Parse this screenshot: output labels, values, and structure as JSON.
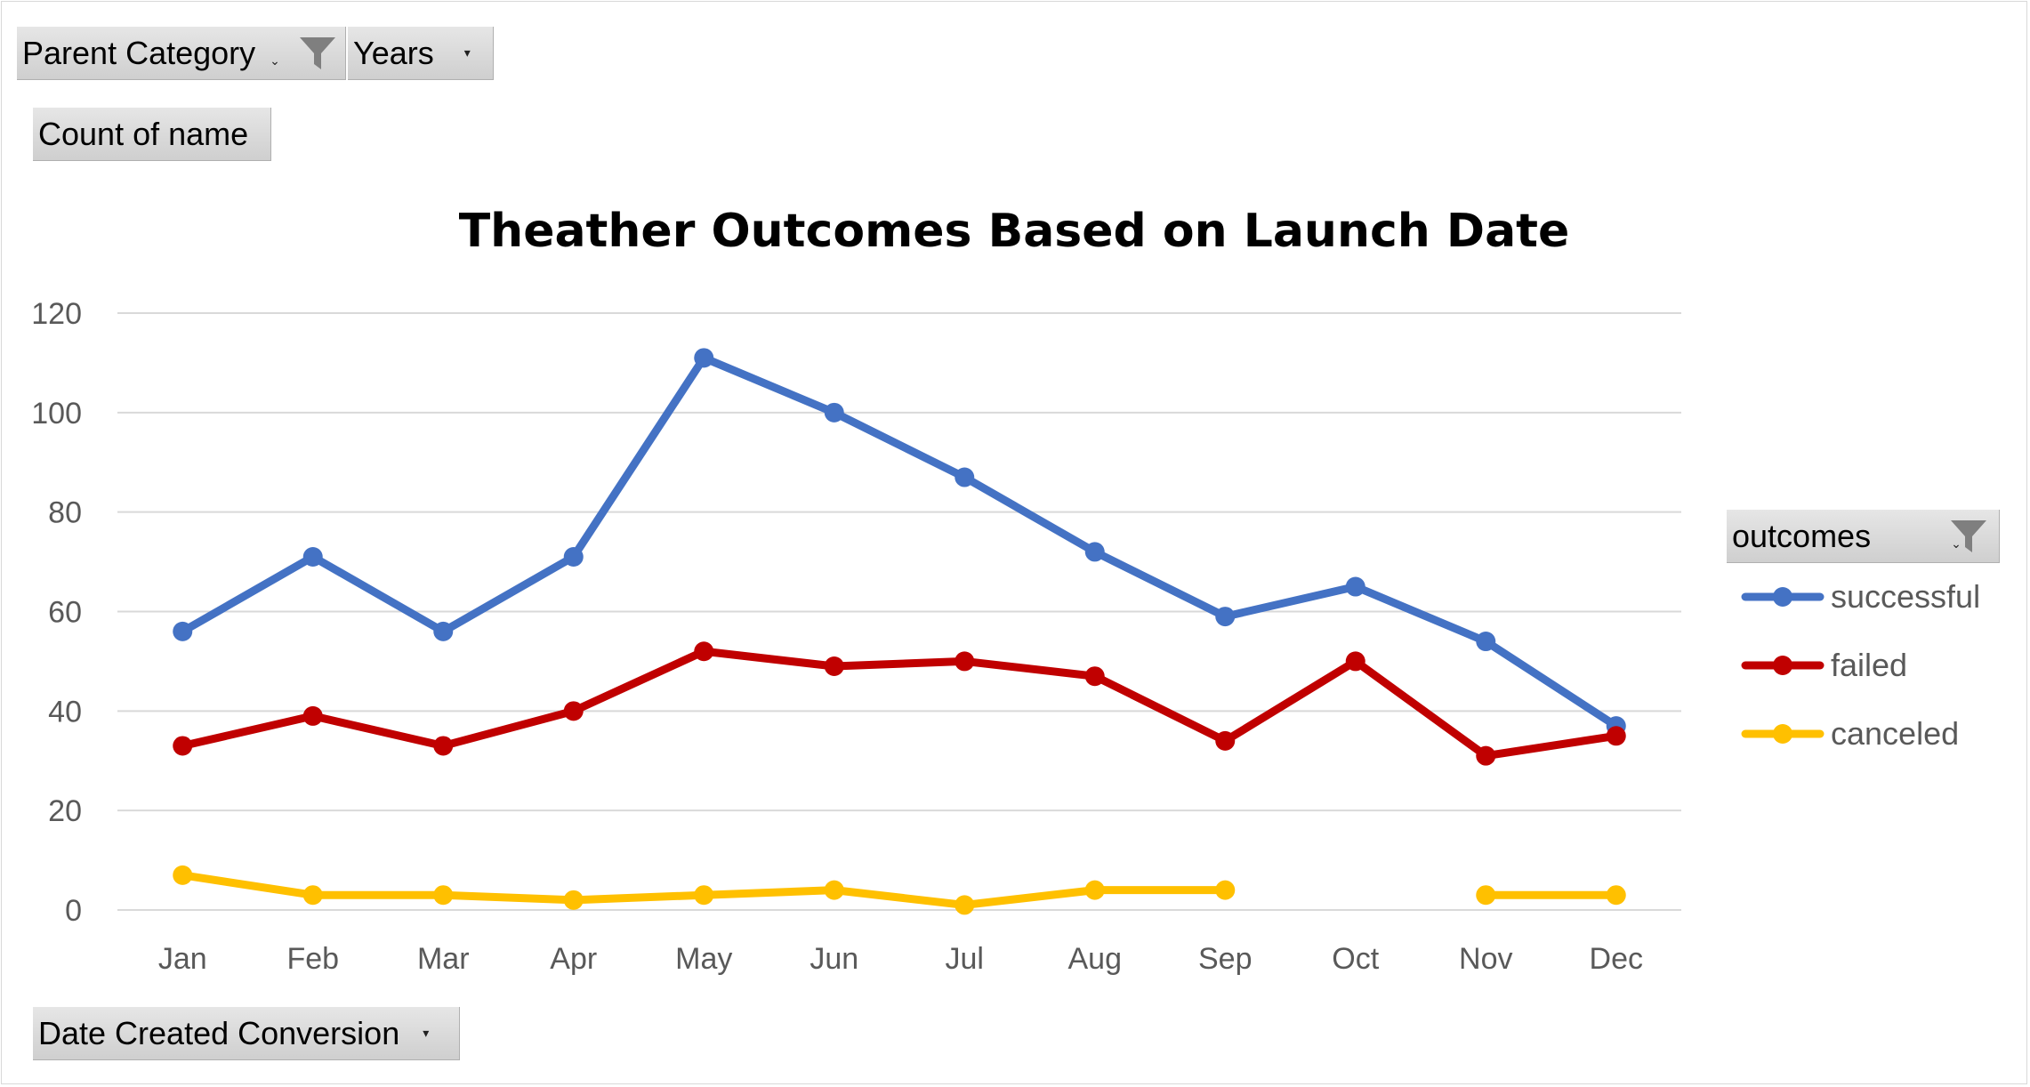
{
  "filters": {
    "parent_category": "Parent Category",
    "years": "Years",
    "values_field": "Count of name",
    "axis_field": "Date Created Conversion",
    "legend_field": "outcomes"
  },
  "colors": {
    "successful": "#4472c4",
    "failed": "#c00000",
    "canceled": "#ffc000",
    "gridline": "#d9d9d9",
    "axis_text": "#595959"
  },
  "icons": {
    "filter": "filter-funnel-icon",
    "dropdown": "dropdown-arrow-icon"
  },
  "chart_data": {
    "type": "line",
    "title": "Theather Outcomes Based on Launch Date",
    "xlabel": "",
    "ylabel": "",
    "categories": [
      "Jan",
      "Feb",
      "Mar",
      "Apr",
      "May",
      "Jun",
      "Jul",
      "Aug",
      "Sep",
      "Oct",
      "Nov",
      "Dec"
    ],
    "ylim": [
      0,
      120
    ],
    "yticks": [
      0,
      20,
      40,
      60,
      80,
      100,
      120
    ],
    "grid": true,
    "legend_position": "right",
    "series": [
      {
        "name": "successful",
        "values": [
          56,
          71,
          56,
          71,
          111,
          100,
          87,
          72,
          59,
          65,
          54,
          37
        ]
      },
      {
        "name": "failed",
        "values": [
          33,
          39,
          33,
          40,
          52,
          49,
          50,
          47,
          34,
          50,
          31,
          35
        ]
      },
      {
        "name": "canceled",
        "values": [
          7,
          3,
          3,
          2,
          3,
          4,
          1,
          4,
          4,
          null,
          3,
          3
        ]
      }
    ]
  }
}
